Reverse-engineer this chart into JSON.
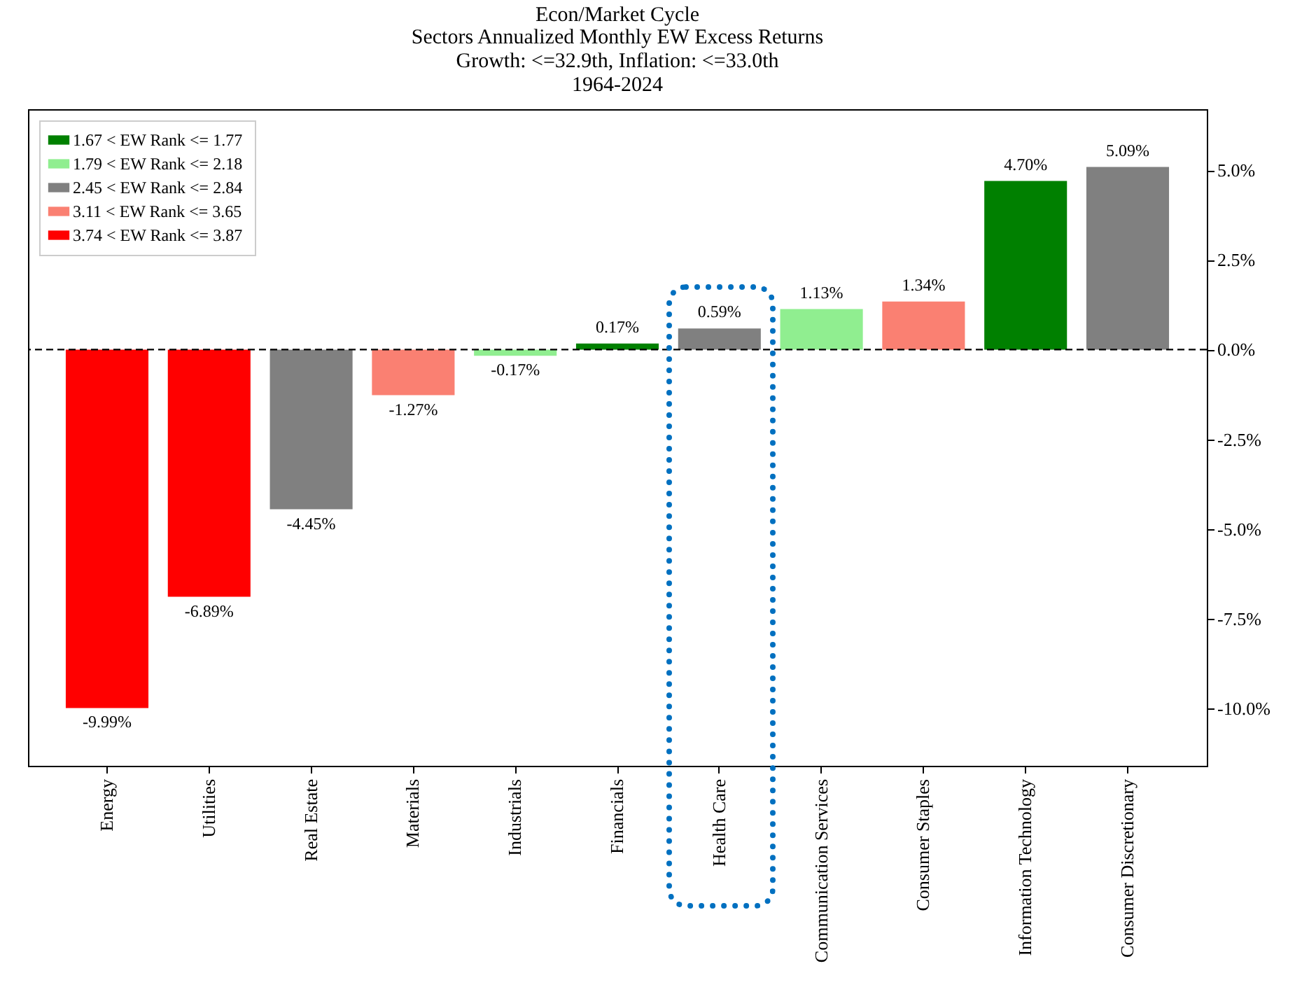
{
  "chart_data": {
    "type": "bar",
    "title": "Econ/Market Cycle",
    "subtitle": "Sectors Annualized Monthly EW Excess Returns\nGrowth: <=32.9th, Inflation: <=33.0th\n1964-2024",
    "categories": [
      "Energy",
      "Utilities",
      "Real Estate",
      "Materials",
      "Industrials",
      "Financials",
      "Health Care",
      "Communication Services",
      "Consumer Staples",
      "Information Technology",
      "Consumer Discretionary"
    ],
    "series": [
      {
        "name": "1.67 < EW Rank <= 1.77",
        "color": "#008000",
        "values": [
          null,
          null,
          null,
          null,
          null,
          0.17,
          null,
          null,
          null,
          4.7,
          null
        ]
      },
      {
        "name": "1.79 < EW Rank <= 2.18",
        "color": "#90ee90",
        "values": [
          null,
          null,
          null,
          null,
          -0.17,
          null,
          null,
          1.13,
          null,
          null,
          null
        ]
      },
      {
        "name": "2.45 < EW Rank <= 2.84",
        "color": "#808080",
        "values": [
          null,
          null,
          -4.45,
          null,
          null,
          null,
          0.59,
          null,
          null,
          null,
          5.09
        ]
      },
      {
        "name": "3.11 < EW Rank <= 3.65",
        "color": "#fa8072",
        "values": [
          null,
          null,
          null,
          -1.27,
          null,
          null,
          null,
          null,
          1.34,
          null,
          null
        ]
      },
      {
        "name": "3.74 < EW Rank <= 3.87",
        "color": "#ff0000",
        "values": [
          -9.99,
          -6.89,
          null,
          null,
          null,
          null,
          null,
          null,
          null,
          null,
          null
        ]
      }
    ],
    "value_labels": [
      "-9.99%",
      "-6.89%",
      "-4.45%",
      "-1.27%",
      "-0.17%",
      "0.17%",
      "0.59%",
      "1.13%",
      "1.34%",
      "4.70%",
      "5.09%"
    ],
    "ylim": [
      -11.6,
      6.7
    ],
    "yticks": [
      {
        "value": -10,
        "label": "-10.0%"
      },
      {
        "value": -7.5,
        "label": "-7.5%"
      },
      {
        "value": -5,
        "label": "-5.0%"
      },
      {
        "value": -2.5,
        "label": "-2.5%"
      },
      {
        "value": 0,
        "label": "0.0%"
      },
      {
        "value": 2.5,
        "label": "2.5%"
      },
      {
        "value": 5,
        "label": "5.0%"
      }
    ],
    "ref_lines": [
      {
        "axis": "y",
        "value": 0,
        "color": "#000000",
        "line_style": "dashed"
      }
    ],
    "legend": "top left",
    "grid": false
  }
}
